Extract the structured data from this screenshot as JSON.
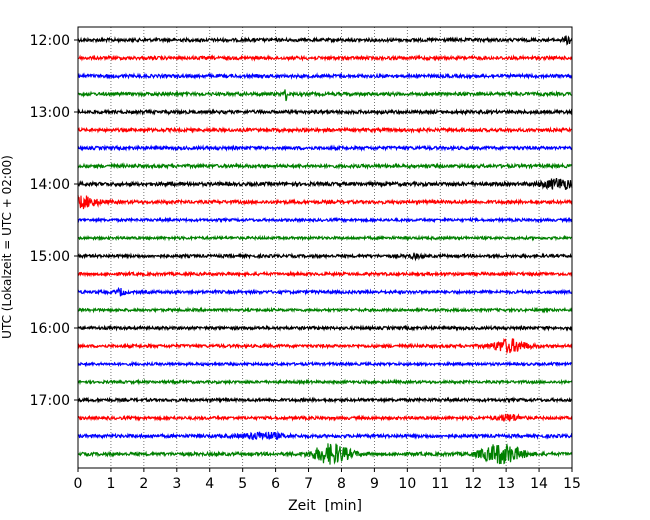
{
  "chart_data": {
    "type": "line",
    "title": "",
    "xlabel": "Zeit  [min]",
    "ylabel": "UTC (Lokalzeit = UTC + 02:00)",
    "xlim": [
      0,
      15
    ],
    "x_ticks": [
      "0",
      "1",
      "2",
      "3",
      "4",
      "5",
      "6",
      "7",
      "8",
      "9",
      "10",
      "11",
      "12",
      "13",
      "14",
      "15"
    ],
    "y_tick_labels": [
      "12:00",
      "13:00",
      "14:00",
      "15:00",
      "16:00",
      "17:00"
    ],
    "grid": "vertical dotted at each minute",
    "trace_interval_min": 15,
    "colors": [
      "#000000",
      "#ff0000",
      "#0000ff",
      "#008000"
    ],
    "traces": [
      {
        "start": "12:00",
        "noise": 1.0,
        "events": [
          {
            "t": 14.9,
            "w": 0.15,
            "a": 2.5
          }
        ]
      },
      {
        "start": "12:15",
        "noise": 1.0,
        "events": []
      },
      {
        "start": "12:30",
        "noise": 1.0,
        "events": []
      },
      {
        "start": "12:45",
        "noise": 1.0,
        "events": [
          {
            "t": 6.3,
            "w": 0.05,
            "a": 4
          }
        ]
      },
      {
        "start": "13:00",
        "noise": 1.0,
        "events": []
      },
      {
        "start": "13:15",
        "noise": 1.0,
        "events": []
      },
      {
        "start": "13:30",
        "noise": 1.0,
        "events": []
      },
      {
        "start": "13:45",
        "noise": 1.0,
        "events": []
      },
      {
        "start": "14:00",
        "noise": 1.1,
        "events": [
          {
            "t": 14.6,
            "w": 0.5,
            "a": 3
          }
        ]
      },
      {
        "start": "14:15",
        "noise": 1.0,
        "events": [
          {
            "t": 0.1,
            "w": 0.5,
            "a": 3.5
          }
        ]
      },
      {
        "start": "14:30",
        "noise": 0.8,
        "events": []
      },
      {
        "start": "14:45",
        "noise": 0.8,
        "events": []
      },
      {
        "start": "15:00",
        "noise": 0.9,
        "events": [
          {
            "t": 10.2,
            "w": 0.2,
            "a": 1.2
          }
        ]
      },
      {
        "start": "15:15",
        "noise": 0.9,
        "events": []
      },
      {
        "start": "15:30",
        "noise": 0.9,
        "events": [
          {
            "t": 1.3,
            "w": 0.12,
            "a": 2
          }
        ]
      },
      {
        "start": "15:45",
        "noise": 0.8,
        "events": []
      },
      {
        "start": "16:00",
        "noise": 0.9,
        "events": []
      },
      {
        "start": "16:15",
        "noise": 0.9,
        "events": [
          {
            "t": 13.1,
            "w": 0.5,
            "a": 4
          }
        ]
      },
      {
        "start": "16:30",
        "noise": 0.8,
        "events": []
      },
      {
        "start": "16:45",
        "noise": 0.8,
        "events": []
      },
      {
        "start": "17:00",
        "noise": 0.9,
        "events": []
      },
      {
        "start": "17:15",
        "noise": 0.9,
        "events": [
          {
            "t": 13.1,
            "w": 0.35,
            "a": 2
          }
        ]
      },
      {
        "start": "17:30",
        "noise": 1.0,
        "events": [
          {
            "t": 5.6,
            "w": 0.6,
            "a": 2
          }
        ]
      },
      {
        "start": "17:45",
        "noise": 1.0,
        "events": [
          {
            "t": 7.7,
            "w": 0.55,
            "a": 6
          },
          {
            "t": 12.85,
            "w": 0.6,
            "a": 6
          }
        ]
      }
    ]
  }
}
